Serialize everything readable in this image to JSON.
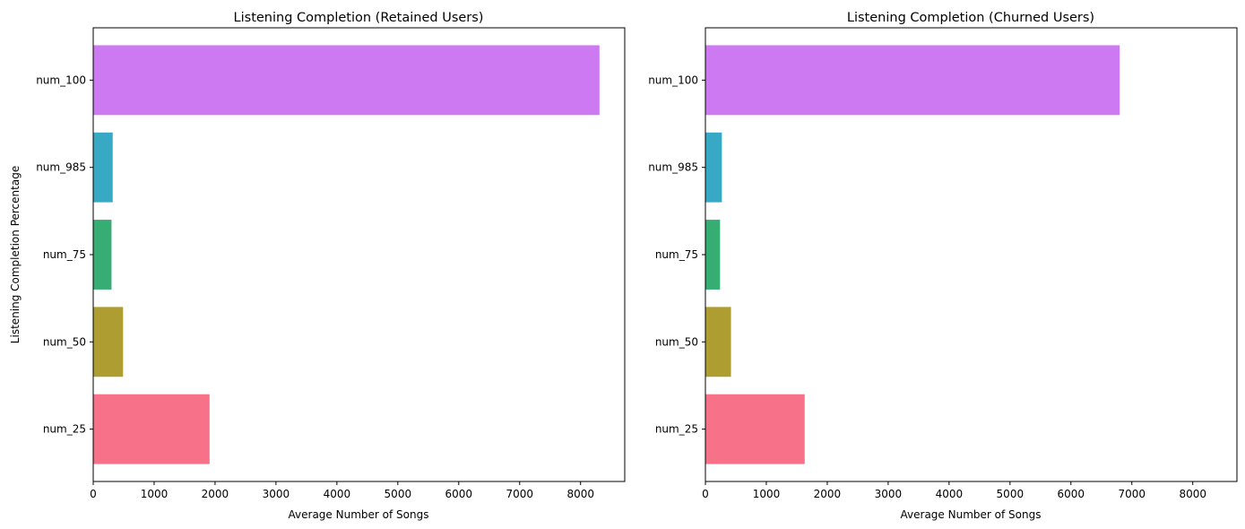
{
  "chart_data": [
    {
      "type": "bar",
      "orientation": "horizontal",
      "title": "Listening Completion (Retained Users)",
      "xlabel": "Average Number of Songs",
      "ylabel": "Listening Completion Percentage",
      "categories": [
        "num_25",
        "num_50",
        "num_75",
        "num_985",
        "num_100"
      ],
      "values": [
        1910,
        490,
        300,
        320,
        8310
      ],
      "colors": [
        "#f77189",
        "#ae9d31",
        "#36ad73",
        "#38a9c5",
        "#cc79f2"
      ],
      "xlim": [
        0,
        8725
      ],
      "xticks": [
        0,
        1000,
        2000,
        3000,
        4000,
        5000,
        6000,
        7000,
        8000
      ],
      "grid": false
    },
    {
      "type": "bar",
      "orientation": "horizontal",
      "title": "Listening Completion (Churned Users)",
      "xlabel": "Average Number of Songs",
      "ylabel": "",
      "categories": [
        "num_25",
        "num_50",
        "num_75",
        "num_985",
        "num_100"
      ],
      "values": [
        1630,
        420,
        240,
        270,
        6800
      ],
      "colors": [
        "#f77189",
        "#ae9d31",
        "#36ad73",
        "#38a9c5",
        "#cc79f2"
      ],
      "xlim": [
        0,
        8725
      ],
      "xticks": [
        0,
        1000,
        2000,
        3000,
        4000,
        5000,
        6000,
        7000,
        8000
      ],
      "grid": false
    }
  ]
}
